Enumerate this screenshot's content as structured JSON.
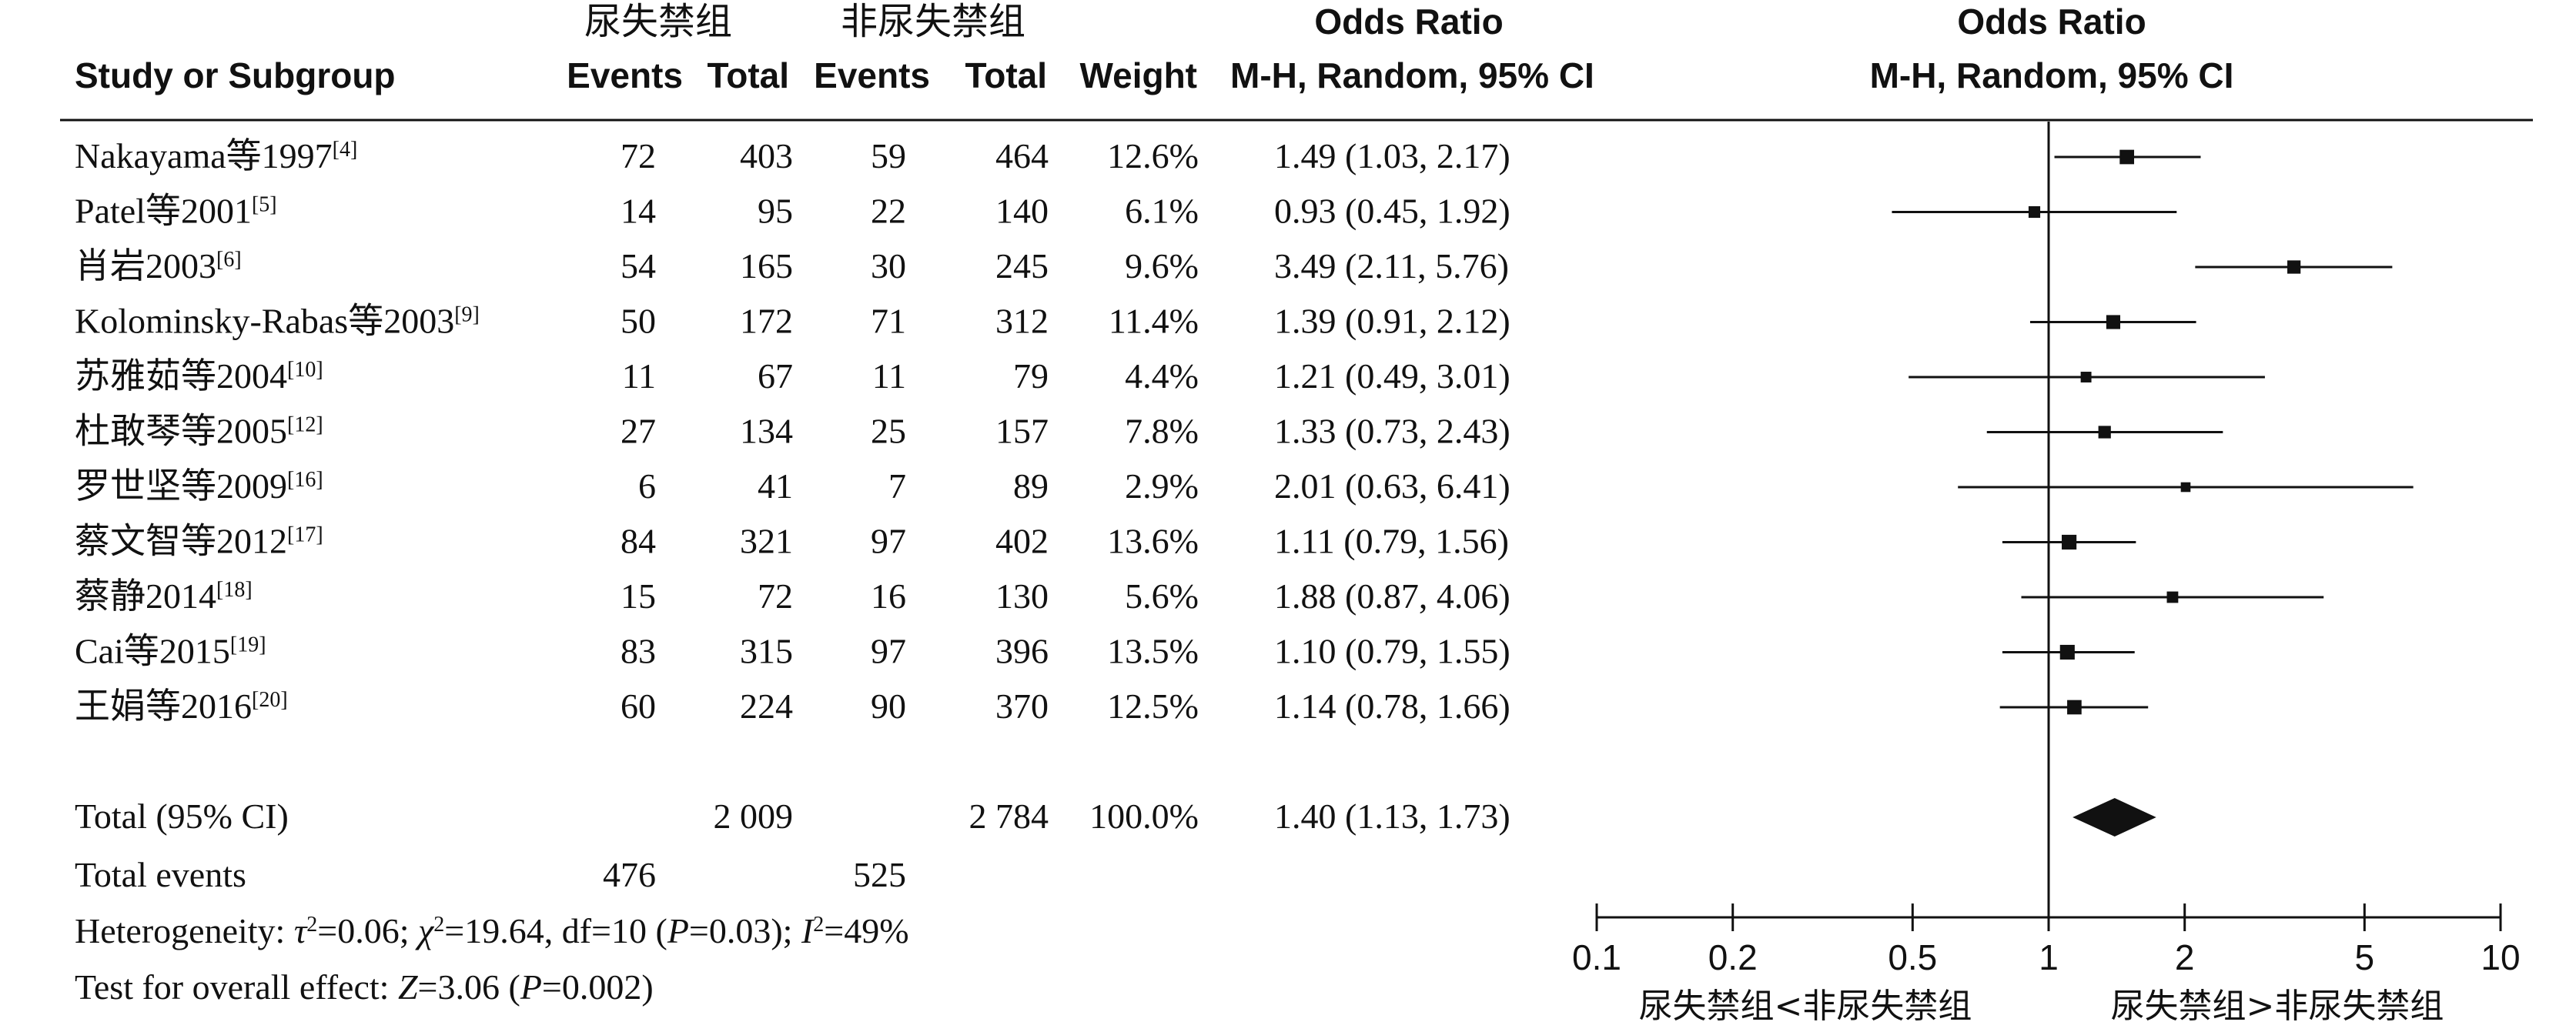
{
  "headers": {
    "group1": "尿失禁组",
    "group2": "非尿失禁组",
    "odds_ratio": "Odds Ratio",
    "study_col": "Study or Subgroup",
    "events": "Events",
    "total": "Total",
    "weight": "Weight",
    "method_ci": "M-H, Random, 95% CI",
    "plot_odds_ratio": "Odds Ratio",
    "plot_method_ci": "M-H, Random, 95% CI"
  },
  "studies": [
    {
      "name": "Nakayama等1997",
      "ref": "[4]",
      "e1": "72",
      "t1": "403",
      "e2": "59",
      "t2": "464",
      "weight": "12.6%",
      "ci_text": "1.49 (1.03, 2.17)"
    },
    {
      "name": "Patel等2001",
      "ref": "[5]",
      "e1": "14",
      "t1": "95",
      "e2": "22",
      "t2": "140",
      "weight": "6.1%",
      "ci_text": "0.93 (0.45, 1.92)"
    },
    {
      "name": "肖岩2003",
      "ref": "[6]",
      "e1": "54",
      "t1": "165",
      "e2": "30",
      "t2": "245",
      "weight": "9.6%",
      "ci_text": "3.49 (2.11, 5.76)"
    },
    {
      "name": "Kolominsky-Rabas等2003",
      "ref": "[9]",
      "e1": "50",
      "t1": "172",
      "e2": "71",
      "t2": "312",
      "weight": "11.4%",
      "ci_text": "1.39 (0.91, 2.12)"
    },
    {
      "name": "苏雅茹等2004",
      "ref": "[10]",
      "e1": "11",
      "t1": "67",
      "e2": "11",
      "t2": "79",
      "weight": "4.4%",
      "ci_text": "1.21 (0.49, 3.01)"
    },
    {
      "name": "杜敢琴等2005",
      "ref": "[12]",
      "e1": "27",
      "t1": "134",
      "e2": "25",
      "t2": "157",
      "weight": "7.8%",
      "ci_text": "1.33 (0.73, 2.43)"
    },
    {
      "name": "罗世坚等2009",
      "ref": "[16]",
      "e1": "6",
      "t1": "41",
      "e2": "7",
      "t2": "89",
      "weight": "2.9%",
      "ci_text": "2.01 (0.63, 6.41)"
    },
    {
      "name": "蔡文智等2012",
      "ref": "[17]",
      "e1": "84",
      "t1": "321",
      "e2": "97",
      "t2": "402",
      "weight": "13.6%",
      "ci_text": "1.11 (0.79, 1.56)"
    },
    {
      "name": "蔡静2014",
      "ref": "[18]",
      "e1": "15",
      "t1": "72",
      "e2": "16",
      "t2": "130",
      "weight": "5.6%",
      "ci_text": "1.88 (0.87, 4.06)"
    },
    {
      "name": "Cai等2015",
      "ref": "[19]",
      "e1": "83",
      "t1": "315",
      "e2": "97",
      "t2": "396",
      "weight": "13.5%",
      "ci_text": "1.10 (0.79, 1.55)"
    },
    {
      "name": "王娟等2016",
      "ref": "[20]",
      "e1": "60",
      "t1": "224",
      "e2": "90",
      "t2": "370",
      "weight": "12.5%",
      "ci_text": "1.14 (0.78, 1.66)"
    }
  ],
  "total": {
    "label": "Total (95% CI)",
    "t1": "2 009",
    "t2": "2 784",
    "weight": "100.0%",
    "ci_text": "1.40 (1.13, 1.73)"
  },
  "total_events": {
    "label": "Total events",
    "e1": "476",
    "e2": "525"
  },
  "heterogeneity": {
    "p1": "Heterogeneity: ",
    "tau": "τ",
    "p2": "=0.06; ",
    "chi": "χ",
    "p3": "=19.64, df=10 (",
    "pvar": "P",
    "p4": "=0.03); ",
    "ivar": "I",
    "p5": "=49%"
  },
  "overall": {
    "p1": "Test for overall effect: ",
    "zvar": "Z",
    "p2": "=3.06 (",
    "pvar": "P",
    "p3": "=0.002)"
  },
  "favours": {
    "left": "尿失禁组<非尿失禁组",
    "right": "尿失禁组>非尿失禁组"
  },
  "chart_data": {
    "type": "forest",
    "x_scale": "log",
    "xlim": [
      0.1,
      10
    ],
    "x_ticks": [
      "0.1",
      "0.2",
      "0.5",
      "1",
      "2",
      "5",
      "10"
    ],
    "x_tick_values": [
      0.1,
      0.2,
      0.5,
      1,
      2,
      5,
      10
    ],
    "reference_line": 1,
    "studies": [
      {
        "or": 1.49,
        "lo": 1.03,
        "hi": 2.17,
        "weight": 12.6
      },
      {
        "or": 0.93,
        "lo": 0.45,
        "hi": 1.92,
        "weight": 6.1
      },
      {
        "or": 3.49,
        "lo": 2.11,
        "hi": 5.76,
        "weight": 9.6
      },
      {
        "or": 1.39,
        "lo": 0.91,
        "hi": 2.12,
        "weight": 11.4
      },
      {
        "or": 1.21,
        "lo": 0.49,
        "hi": 3.01,
        "weight": 4.4
      },
      {
        "or": 1.33,
        "lo": 0.73,
        "hi": 2.43,
        "weight": 7.8
      },
      {
        "or": 2.01,
        "lo": 0.63,
        "hi": 6.41,
        "weight": 2.9
      },
      {
        "or": 1.11,
        "lo": 0.79,
        "hi": 1.56,
        "weight": 13.6
      },
      {
        "or": 1.88,
        "lo": 0.87,
        "hi": 4.06,
        "weight": 5.6
      },
      {
        "or": 1.1,
        "lo": 0.79,
        "hi": 1.55,
        "weight": 13.5
      },
      {
        "or": 1.14,
        "lo": 0.78,
        "hi": 1.66,
        "weight": 12.5
      }
    ],
    "pooled": {
      "or": 1.4,
      "lo": 1.13,
      "hi": 1.73
    }
  }
}
